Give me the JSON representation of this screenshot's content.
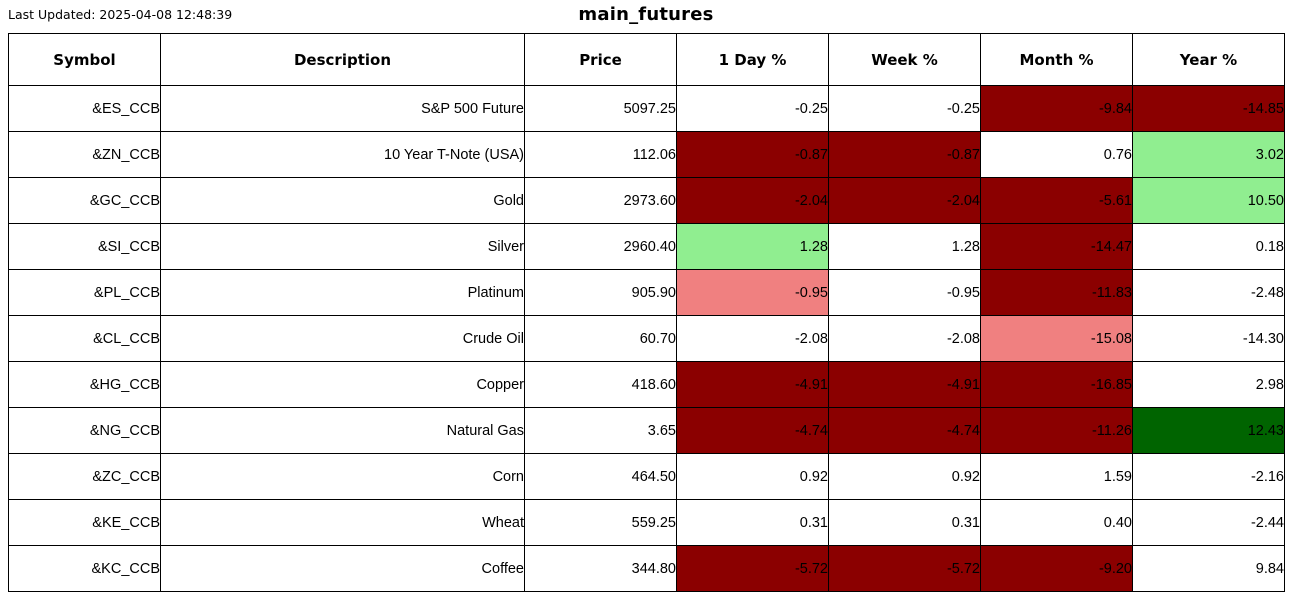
{
  "header": {
    "last_updated": "Last Updated: 2025-04-08 12:48:39",
    "title": "main_futures"
  },
  "colors": {
    "strong_negative": "#8B0000",
    "mild_negative": "#F08080",
    "mild_positive": "#90EE90",
    "strong_positive": "#006400",
    "neutral": "#FFFFFF",
    "border": "#000000",
    "text": "#000000"
  },
  "chart_data": {
    "type": "table",
    "title": "main_futures",
    "columns": [
      "Symbol",
      "Description",
      "Price",
      "1 Day %",
      "Week %",
      "Month %",
      "Year %"
    ],
    "change_columns": [
      "1 Day %",
      "Week %",
      "Month %",
      "Year %"
    ],
    "rows": [
      {
        "symbol": "&ES_CCB",
        "description": "S&P 500 Future",
        "price": "5097.25",
        "changes": [
          {
            "value": "-0.25",
            "bg": "neutral"
          },
          {
            "value": "-0.25",
            "bg": "neutral"
          },
          {
            "value": "-9.84",
            "bg": "strong_negative"
          },
          {
            "value": "-14.85",
            "bg": "strong_negative"
          }
        ]
      },
      {
        "symbol": "&ZN_CCB",
        "description": "10 Year T-Note (USA)",
        "price": "112.06",
        "changes": [
          {
            "value": "-0.87",
            "bg": "strong_negative"
          },
          {
            "value": "-0.87",
            "bg": "strong_negative"
          },
          {
            "value": "0.76",
            "bg": "neutral"
          },
          {
            "value": "3.02",
            "bg": "mild_positive"
          }
        ]
      },
      {
        "symbol": "&GC_CCB",
        "description": "Gold",
        "price": "2973.60",
        "changes": [
          {
            "value": "-2.04",
            "bg": "strong_negative"
          },
          {
            "value": "-2.04",
            "bg": "strong_negative"
          },
          {
            "value": "-5.61",
            "bg": "strong_negative"
          },
          {
            "value": "10.50",
            "bg": "mild_positive"
          }
        ]
      },
      {
        "symbol": "&SI_CCB",
        "description": "Silver",
        "price": "2960.40",
        "changes": [
          {
            "value": "1.28",
            "bg": "mild_positive"
          },
          {
            "value": "1.28",
            "bg": "neutral"
          },
          {
            "value": "-14.47",
            "bg": "strong_negative"
          },
          {
            "value": "0.18",
            "bg": "neutral"
          }
        ]
      },
      {
        "symbol": "&PL_CCB",
        "description": "Platinum",
        "price": "905.90",
        "changes": [
          {
            "value": "-0.95",
            "bg": "mild_negative"
          },
          {
            "value": "-0.95",
            "bg": "neutral"
          },
          {
            "value": "-11.83",
            "bg": "strong_negative"
          },
          {
            "value": "-2.48",
            "bg": "neutral"
          }
        ]
      },
      {
        "symbol": "&CL_CCB",
        "description": "Crude Oil",
        "price": "60.70",
        "changes": [
          {
            "value": "-2.08",
            "bg": "neutral"
          },
          {
            "value": "-2.08",
            "bg": "neutral"
          },
          {
            "value": "-15.08",
            "bg": "mild_negative"
          },
          {
            "value": "-14.30",
            "bg": "neutral"
          }
        ]
      },
      {
        "symbol": "&HG_CCB",
        "description": "Copper",
        "price": "418.60",
        "changes": [
          {
            "value": "-4.91",
            "bg": "strong_negative"
          },
          {
            "value": "-4.91",
            "bg": "strong_negative"
          },
          {
            "value": "-16.85",
            "bg": "strong_negative"
          },
          {
            "value": "2.98",
            "bg": "neutral"
          }
        ]
      },
      {
        "symbol": "&NG_CCB",
        "description": "Natural Gas",
        "price": "3.65",
        "changes": [
          {
            "value": "-4.74",
            "bg": "strong_negative"
          },
          {
            "value": "-4.74",
            "bg": "strong_negative"
          },
          {
            "value": "-11.26",
            "bg": "strong_negative"
          },
          {
            "value": "12.43",
            "bg": "strong_positive"
          }
        ]
      },
      {
        "symbol": "&ZC_CCB",
        "description": "Corn",
        "price": "464.50",
        "changes": [
          {
            "value": "0.92",
            "bg": "neutral"
          },
          {
            "value": "0.92",
            "bg": "neutral"
          },
          {
            "value": "1.59",
            "bg": "neutral"
          },
          {
            "value": "-2.16",
            "bg": "neutral"
          }
        ]
      },
      {
        "symbol": "&KE_CCB",
        "description": "Wheat",
        "price": "559.25",
        "changes": [
          {
            "value": "0.31",
            "bg": "neutral"
          },
          {
            "value": "0.31",
            "bg": "neutral"
          },
          {
            "value": "0.40",
            "bg": "neutral"
          },
          {
            "value": "-2.44",
            "bg": "neutral"
          }
        ]
      },
      {
        "symbol": "&KC_CCB",
        "description": "Coffee",
        "price": "344.80",
        "changes": [
          {
            "value": "-5.72",
            "bg": "strong_negative"
          },
          {
            "value": "-5.72",
            "bg": "strong_negative"
          },
          {
            "value": "-9.20",
            "bg": "strong_negative"
          },
          {
            "value": "9.84",
            "bg": "neutral"
          }
        ]
      }
    ]
  }
}
